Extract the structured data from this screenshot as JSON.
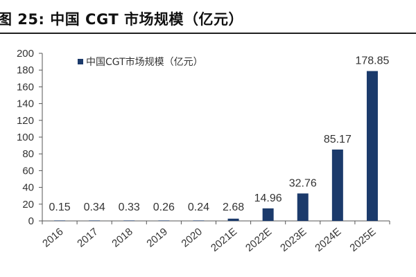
{
  "figure": {
    "label": "图 25:",
    "title": "中国 CGT 市场规模（亿元）"
  },
  "chart_data": {
    "type": "bar",
    "categories": [
      "2016",
      "2017",
      "2018",
      "2019",
      "2020",
      "2021E",
      "2022E",
      "2023E",
      "2024E",
      "2025E"
    ],
    "series": [
      {
        "name": "中国CGT市场规模（亿元）",
        "values": [
          0.15,
          0.34,
          0.33,
          0.26,
          0.24,
          2.68,
          14.96,
          32.76,
          85.17,
          178.85
        ],
        "labels": [
          "0.15",
          "0.34",
          "0.33",
          "0.26",
          "0.24",
          "2.68",
          "14.96",
          "32.76",
          "85.17",
          "178.85"
        ],
        "color": "#1b3a6b"
      }
    ],
    "ylim": [
      0,
      200
    ],
    "yticks": [
      0,
      20,
      40,
      60,
      80,
      100,
      120,
      140,
      160,
      180,
      200
    ],
    "grid": false,
    "legend_position": "top-left",
    "xlabel": "",
    "ylabel": ""
  }
}
